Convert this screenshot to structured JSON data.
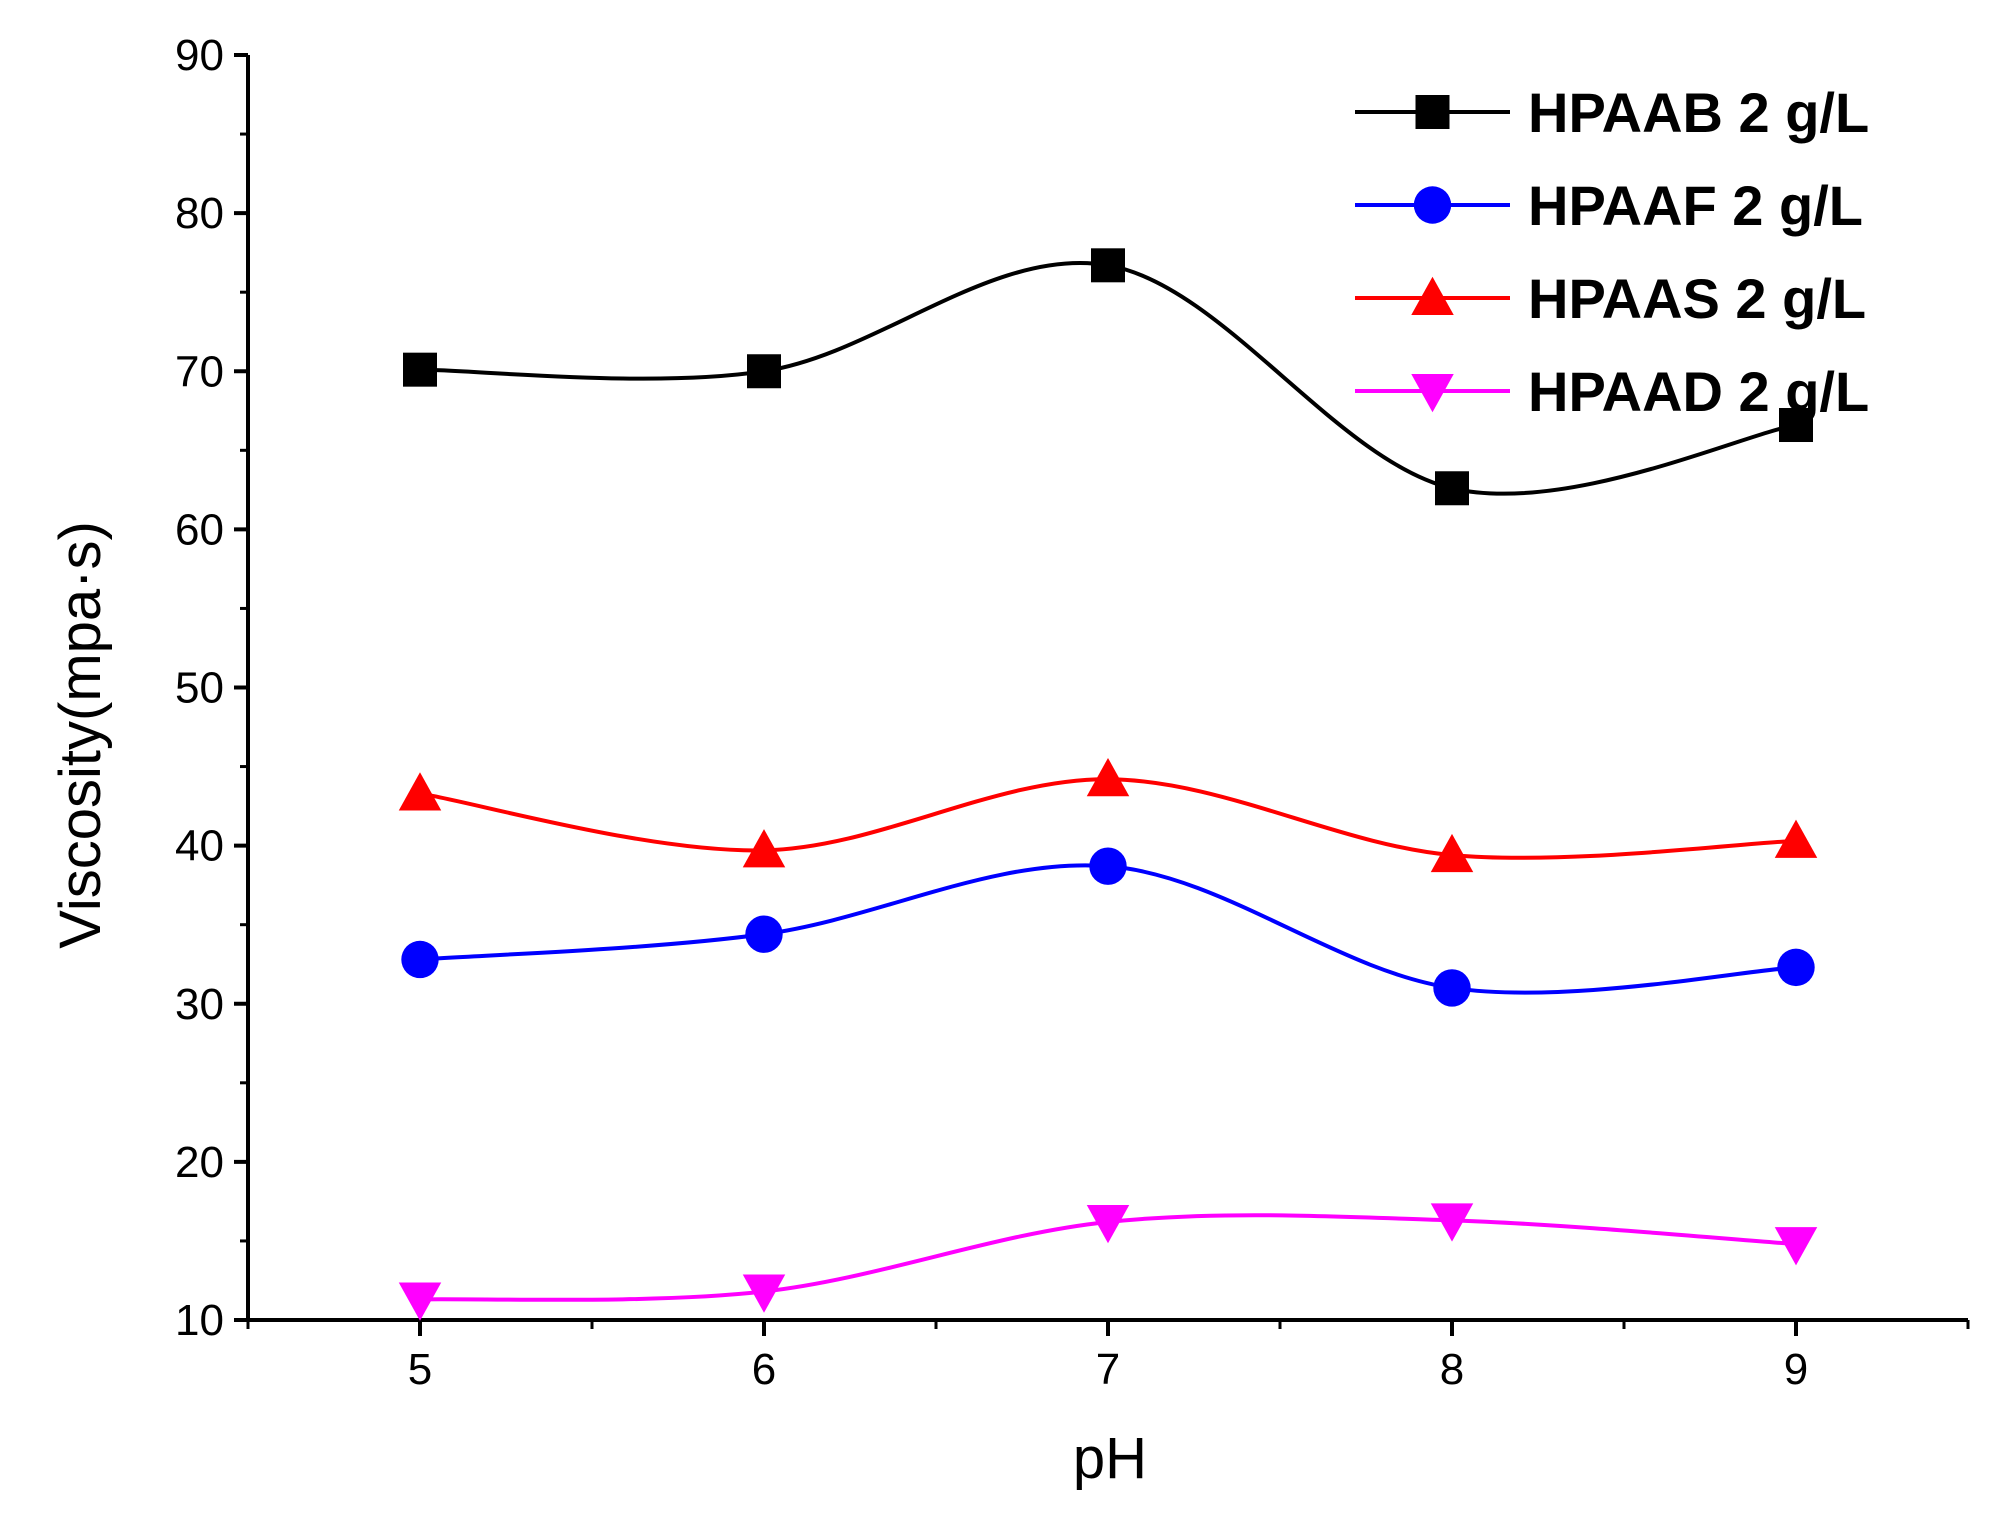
{
  "chart_data": {
    "type": "line",
    "title": "",
    "xlabel": "pH",
    "ylabel": "Viscosity(mpa·s)",
    "xlim": [
      4.5,
      9.5
    ],
    "ylim": [
      10,
      90
    ],
    "x": [
      5,
      6,
      7,
      8,
      9
    ],
    "x_ticks": [
      "5",
      "6",
      "7",
      "8",
      "9"
    ],
    "y_ticks": [
      "10",
      "20",
      "30",
      "40",
      "50",
      "60",
      "70",
      "80",
      "90"
    ],
    "legend_position": "top-right",
    "series": [
      {
        "name": "HPAAB 2 g/L",
        "marker": "square",
        "color": "#000000",
        "values": [
          70.1,
          70.0,
          76.7,
          62.6,
          66.6
        ]
      },
      {
        "name": "HPAAF 2 g/L",
        "marker": "circle",
        "color": "#0000ff",
        "values": [
          32.8,
          34.4,
          38.7,
          31.0,
          32.3
        ]
      },
      {
        "name": "HPAAS 2 g/L",
        "marker": "triangle-up",
        "color": "#ff0000",
        "values": [
          43.3,
          39.7,
          44.2,
          39.4,
          40.3
        ]
      },
      {
        "name": "HPAAD 2 g/L",
        "marker": "triangle-down",
        "color": "#ff00ff",
        "values": [
          11.3,
          11.8,
          16.2,
          16.3,
          14.8
        ]
      }
    ]
  }
}
